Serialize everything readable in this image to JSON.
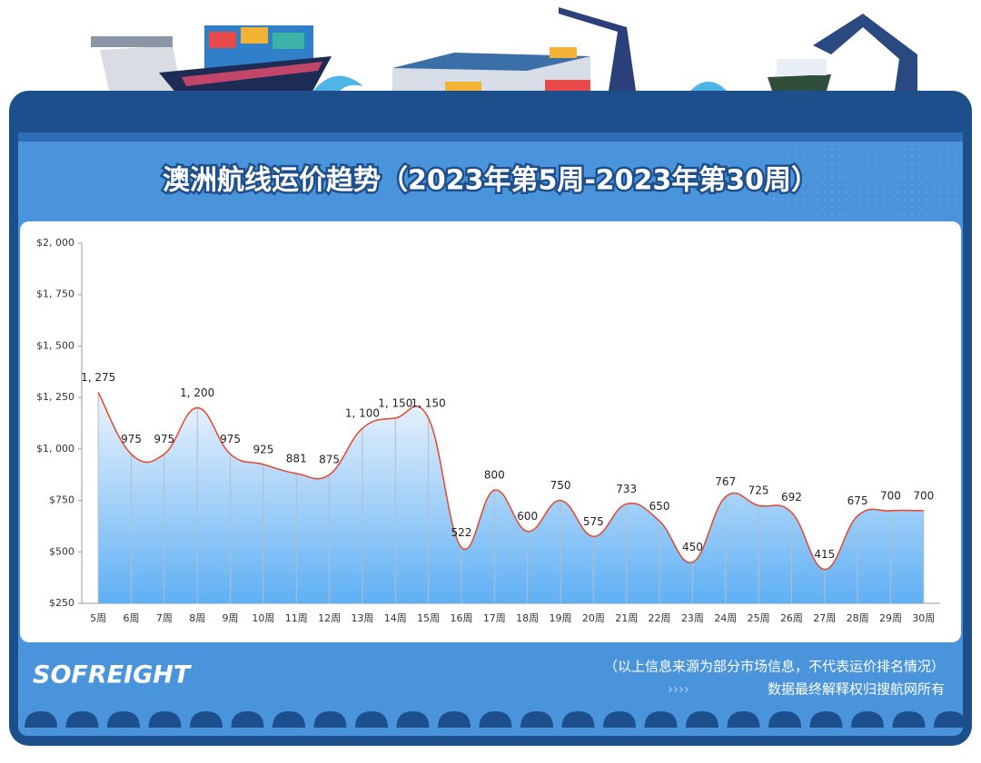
{
  "chart_data": {
    "type": "line",
    "title": "澳洲航线运价趋势（2023年第5周-2023年第30周）",
    "categories": [
      "5周",
      "6周",
      "7周",
      "8周",
      "9周",
      "10周",
      "11周",
      "12周",
      "13周",
      "14周",
      "15周",
      "16周",
      "17周",
      "18周",
      "19周",
      "20周",
      "21周",
      "22周",
      "23周",
      "24周",
      "25周",
      "26周",
      "27周",
      "28周",
      "29周",
      "30周"
    ],
    "values": [
      1275,
      975,
      975,
      1200,
      975,
      925,
      881,
      875,
      1100,
      1150,
      1150,
      522,
      800,
      600,
      750,
      575,
      733,
      650,
      450,
      767,
      725,
      692,
      415,
      675,
      700,
      700
    ],
    "value_labels": [
      "1, 275",
      "975",
      "975",
      "1, 200",
      "975",
      "925",
      "881",
      "875",
      "1, 100",
      "1, 150",
      "1, 150",
      "522",
      "800",
      "600",
      "750",
      "575",
      "733",
      "650",
      "450",
      "767",
      "725",
      "692",
      "415",
      "675",
      "700",
      "700"
    ],
    "color": "#e8452c",
    "ylim": [
      250,
      2000
    ],
    "yticks": [
      {
        "value": 250,
        "label": "$250"
      },
      {
        "value": 500,
        "label": "$500"
      },
      {
        "value": 750,
        "label": "$750"
      },
      {
        "value": 1000,
        "label": "$1, 000"
      },
      {
        "value": 1250,
        "label": "$1, 250"
      },
      {
        "value": 1500,
        "label": "$1, 500"
      },
      {
        "value": 1750,
        "label": "$1, 750"
      },
      {
        "value": 2000,
        "label": "$2, 000"
      }
    ],
    "footer": {
      "logo": "SOFREIGHT",
      "note": "（以上信息来源为部分市场信息，不代表运价排名情况）",
      "rights": "数据最终解释权归搜航网所有"
    }
  }
}
